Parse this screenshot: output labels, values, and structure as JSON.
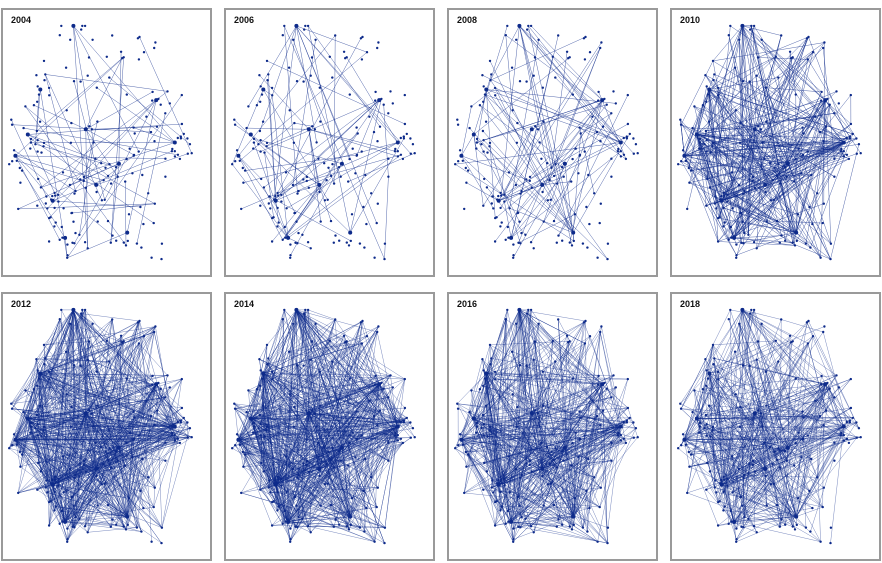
{
  "colors": {
    "network": "#0d2a8a",
    "frame": "#9a9a9a",
    "label": "#111111"
  },
  "panels": [
    {
      "label": "2004",
      "edge_density": 70
    },
    {
      "label": "2006",
      "edge_density": 85
    },
    {
      "label": "2008",
      "edge_density": 110
    },
    {
      "label": "2010",
      "edge_density": 420
    },
    {
      "label": "2012",
      "edge_density": 900
    },
    {
      "label": "2014",
      "edge_density": 950
    },
    {
      "label": "2016",
      "edge_density": 700
    },
    {
      "label": "2018",
      "edge_density": 560
    }
  ]
}
